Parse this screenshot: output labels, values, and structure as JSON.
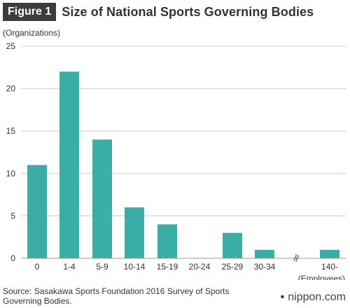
{
  "header": {
    "figure_label": "Figure 1",
    "title": "Size of National Sports Governing Bodies"
  },
  "source": "Source: Sasakawa Sports Foundation 2016 Survey of Sports Governing Bodies.",
  "brand": {
    "name": "nippon",
    "suffix": ".com"
  },
  "colors": {
    "bar": "#3aada4",
    "grid": "#cccccc",
    "axis": "#999999"
  },
  "chart_data": {
    "type": "bar",
    "ylabel": "(Organizations)",
    "xlabel": "(Employees)",
    "categories": [
      "0",
      "1-4",
      "5-9",
      "10-14",
      "15-19",
      "20-24",
      "25-29",
      "30-34",
      "140-"
    ],
    "values": [
      11,
      22,
      14,
      6,
      4,
      0,
      3,
      1,
      1
    ],
    "yticks": [
      0,
      5,
      10,
      15,
      20,
      25
    ],
    "ylim": [
      0,
      25
    ],
    "axis_break_symbol": "≈",
    "grid": true
  }
}
